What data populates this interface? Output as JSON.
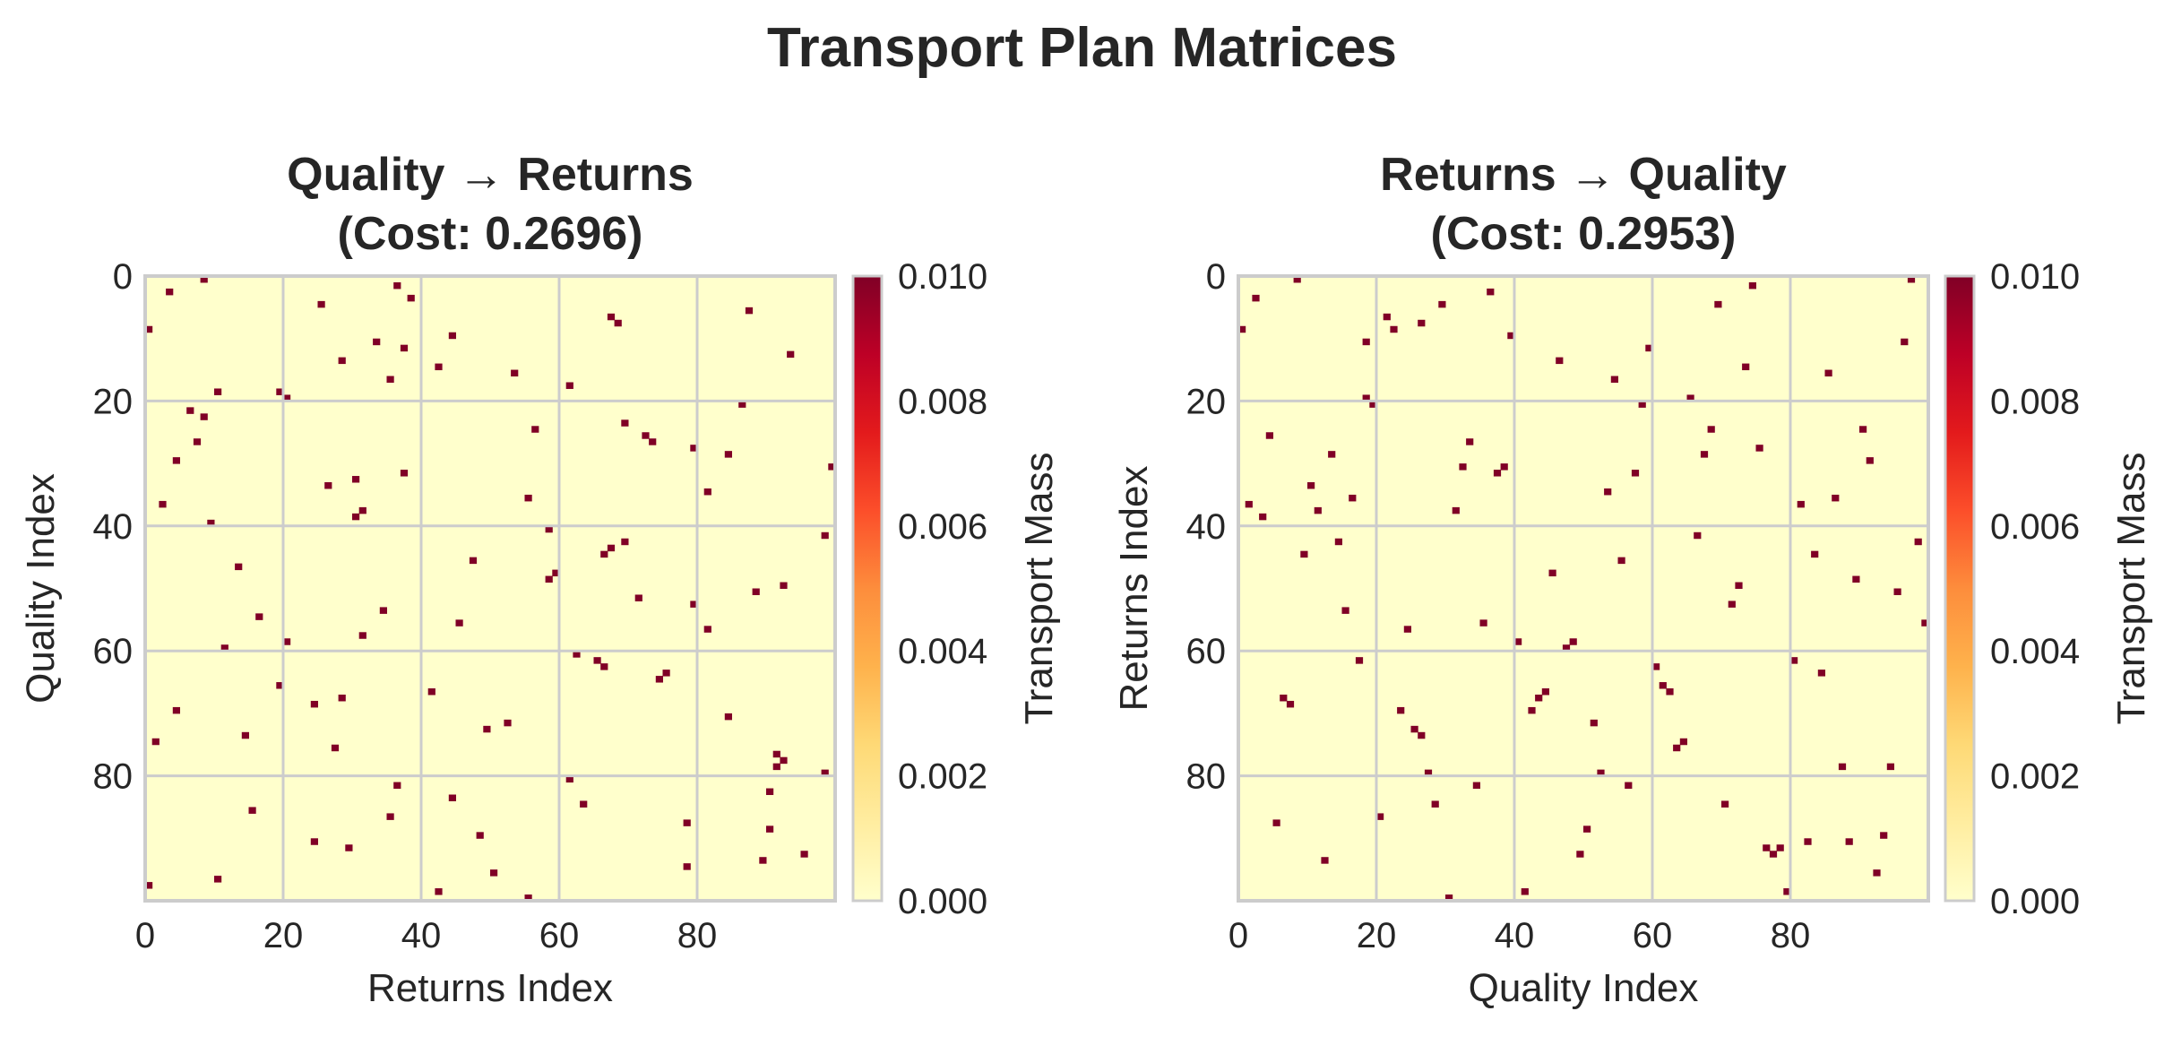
{
  "figure": {
    "title": "Transport Plan Matrices"
  },
  "colors": {
    "background_low": "#ffffcc",
    "mass_high": "#800026",
    "grid": "#cccccc",
    "text": "#262626"
  },
  "chart_data": [
    {
      "type": "heatmap",
      "title_line1": "Quality → Returns",
      "title_line2": "(Cost: 0.2696)",
      "xlabel": "Returns Index",
      "ylabel": "Quality Index",
      "x_ticks": [
        "0",
        "20",
        "40",
        "60",
        "80"
      ],
      "y_ticks": [
        "0",
        "20",
        "40",
        "60",
        "80"
      ],
      "n": 100,
      "colormap": "YlOrRd",
      "vmin": 0.0,
      "vmax": 0.01,
      "colorbar_label": "Transport Mass",
      "colorbar_ticks": [
        "0.000",
        "0.002",
        "0.004",
        "0.006",
        "0.008",
        "0.010"
      ],
      "grid": true,
      "cell_value": 0.01,
      "cells": [
        [
          0,
          8
        ],
        [
          2,
          3
        ],
        [
          13,
          28
        ],
        [
          16,
          35
        ],
        [
          14,
          42
        ],
        [
          18,
          10
        ],
        [
          5,
          87
        ],
        [
          12,
          93
        ],
        [
          9,
          44
        ],
        [
          10,
          33
        ],
        [
          11,
          37
        ],
        [
          1,
          36
        ],
        [
          3,
          38
        ],
        [
          4,
          25
        ],
        [
          6,
          67
        ],
        [
          7,
          68
        ],
        [
          8,
          0
        ],
        [
          15,
          53
        ],
        [
          17,
          61
        ],
        [
          19,
          20
        ],
        [
          20,
          86
        ],
        [
          21,
          6
        ],
        [
          22,
          8
        ],
        [
          23,
          69
        ],
        [
          24,
          56
        ],
        [
          25,
          72
        ],
        [
          26,
          73
        ],
        [
          27,
          79
        ],
        [
          28,
          84
        ],
        [
          29,
          4
        ],
        [
          30,
          99
        ],
        [
          31,
          37
        ],
        [
          32,
          30
        ],
        [
          33,
          26
        ],
        [
          34,
          81
        ],
        [
          35,
          55
        ],
        [
          36,
          2
        ],
        [
          37,
          31
        ],
        [
          38,
          30
        ],
        [
          39,
          9
        ],
        [
          40,
          58
        ],
        [
          41,
          98
        ],
        [
          42,
          69
        ],
        [
          43,
          67
        ],
        [
          44,
          66
        ],
        [
          45,
          47
        ],
        [
          46,
          13
        ],
        [
          47,
          59
        ],
        [
          48,
          58
        ],
        [
          49,
          92
        ],
        [
          50,
          88
        ],
        [
          51,
          71
        ],
        [
          52,
          79
        ],
        [
          53,
          34
        ],
        [
          54,
          16
        ],
        [
          55,
          45
        ],
        [
          56,
          81
        ],
        [
          57,
          31
        ],
        [
          58,
          20
        ],
        [
          59,
          11
        ],
        [
          60,
          62
        ],
        [
          61,
          65
        ],
        [
          62,
          66
        ],
        [
          63,
          75
        ],
        [
          64,
          74
        ],
        [
          65,
          19
        ],
        [
          66,
          41
        ],
        [
          67,
          28
        ],
        [
          68,
          24
        ],
        [
          69,
          4
        ],
        [
          70,
          84
        ],
        [
          71,
          52
        ],
        [
          72,
          49
        ],
        [
          73,
          14
        ],
        [
          74,
          1
        ],
        [
          75,
          27
        ],
        [
          76,
          91
        ],
        [
          77,
          92
        ],
        [
          78,
          91
        ],
        [
          79,
          98
        ],
        [
          80,
          61
        ],
        [
          81,
          36
        ],
        [
          82,
          90
        ],
        [
          83,
          44
        ],
        [
          84,
          63
        ],
        [
          85,
          15
        ],
        [
          86,
          35
        ],
        [
          87,
          78
        ],
        [
          88,
          90
        ],
        [
          89,
          48
        ],
        [
          90,
          24
        ],
        [
          91,
          29
        ],
        [
          92,
          95
        ],
        [
          93,
          89
        ],
        [
          94,
          78
        ],
        [
          95,
          50
        ],
        [
          96,
          10
        ],
        [
          97,
          0
        ],
        [
          98,
          42
        ],
        [
          99,
          55
        ],
        [
          18,
          19
        ],
        [
          26,
          7
        ]
      ]
    },
    {
      "type": "heatmap",
      "title_line1": "Returns → Quality",
      "title_line2": "(Cost: 0.2953)",
      "xlabel": "Quality Index",
      "ylabel": "Returns Index",
      "x_ticks": [
        "0",
        "20",
        "40",
        "60",
        "80"
      ],
      "y_ticks": [
        "0",
        "20",
        "40",
        "60",
        "80"
      ],
      "n": 100,
      "colormap": "YlOrRd",
      "vmin": 0.0,
      "vmax": 0.01,
      "colorbar_label": "Transport Mass",
      "colorbar_ticks": [
        "0.000",
        "0.002",
        "0.004",
        "0.006",
        "0.008",
        "0.010"
      ],
      "grid": true,
      "cell_value": 0.01,
      "cells": [
        [
          8,
          0
        ],
        [
          3,
          2
        ],
        [
          28,
          13
        ],
        [
          35,
          16
        ],
        [
          42,
          14
        ],
        [
          10,
          18
        ],
        [
          87,
          5
        ],
        [
          93,
          12
        ],
        [
          44,
          9
        ],
        [
          33,
          10
        ],
        [
          37,
          11
        ],
        [
          36,
          1
        ],
        [
          38,
          3
        ],
        [
          25,
          4
        ],
        [
          67,
          6
        ],
        [
          68,
          7
        ],
        [
          0,
          8
        ],
        [
          53,
          15
        ],
        [
          61,
          17
        ],
        [
          20,
          19
        ],
        [
          86,
          20
        ],
        [
          6,
          21
        ],
        [
          8,
          22
        ],
        [
          69,
          23
        ],
        [
          56,
          24
        ],
        [
          72,
          25
        ],
        [
          73,
          26
        ],
        [
          79,
          27
        ],
        [
          84,
          28
        ],
        [
          4,
          29
        ],
        [
          99,
          30
        ],
        [
          37,
          31
        ],
        [
          30,
          32
        ],
        [
          26,
          33
        ],
        [
          81,
          34
        ],
        [
          55,
          35
        ],
        [
          2,
          36
        ],
        [
          31,
          37
        ],
        [
          30,
          38
        ],
        [
          9,
          39
        ],
        [
          58,
          40
        ],
        [
          98,
          41
        ],
        [
          69,
          42
        ],
        [
          67,
          43
        ],
        [
          66,
          44
        ],
        [
          47,
          45
        ],
        [
          13,
          46
        ],
        [
          59,
          47
        ],
        [
          58,
          48
        ],
        [
          92,
          49
        ],
        [
          88,
          50
        ],
        [
          71,
          51
        ],
        [
          79,
          52
        ],
        [
          34,
          53
        ],
        [
          16,
          54
        ],
        [
          45,
          55
        ],
        [
          81,
          56
        ],
        [
          31,
          57
        ],
        [
          20,
          58
        ],
        [
          11,
          59
        ],
        [
          62,
          60
        ],
        [
          65,
          61
        ],
        [
          66,
          62
        ],
        [
          75,
          63
        ],
        [
          74,
          64
        ],
        [
          19,
          65
        ],
        [
          41,
          66
        ],
        [
          28,
          67
        ],
        [
          24,
          68
        ],
        [
          4,
          69
        ],
        [
          84,
          70
        ],
        [
          52,
          71
        ],
        [
          49,
          72
        ],
        [
          14,
          73
        ],
        [
          1,
          74
        ],
        [
          27,
          75
        ],
        [
          91,
          76
        ],
        [
          92,
          77
        ],
        [
          91,
          78
        ],
        [
          98,
          79
        ],
        [
          61,
          80
        ],
        [
          36,
          81
        ],
        [
          90,
          82
        ],
        [
          44,
          83
        ],
        [
          63,
          84
        ],
        [
          15,
          85
        ],
        [
          35,
          86
        ],
        [
          78,
          87
        ],
        [
          90,
          88
        ],
        [
          48,
          89
        ],
        [
          24,
          90
        ],
        [
          29,
          91
        ],
        [
          95,
          92
        ],
        [
          89,
          93
        ],
        [
          78,
          94
        ],
        [
          50,
          95
        ],
        [
          10,
          96
        ],
        [
          0,
          97
        ],
        [
          42,
          98
        ],
        [
          55,
          99
        ],
        [
          19,
          18
        ],
        [
          7,
          26
        ]
      ]
    }
  ]
}
